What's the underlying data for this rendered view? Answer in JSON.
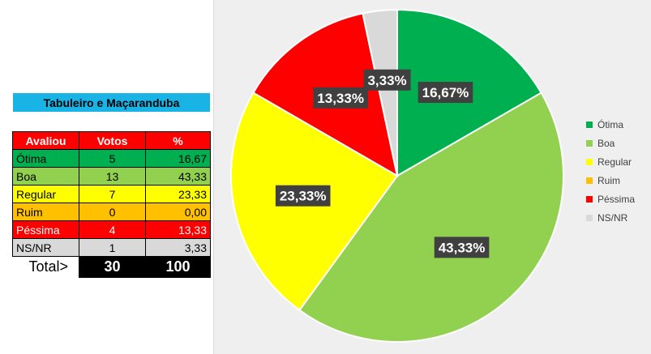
{
  "table": {
    "title": "Tabuleiro e Maçaranduba",
    "headers": [
      "Avaliou",
      "Votos",
      "%"
    ],
    "rows": [
      {
        "label": "Ótima",
        "votes": "5",
        "pct": "16,67",
        "color": "#00b050",
        "text_color": "#000000"
      },
      {
        "label": "Boa",
        "votes": "13",
        "pct": "43,33",
        "color": "#92d050",
        "text_color": "#000000"
      },
      {
        "label": "Regular",
        "votes": "7",
        "pct": "23,33",
        "color": "#ffff00",
        "text_color": "#000000"
      },
      {
        "label": "Ruim",
        "votes": "0",
        "pct": "0,00",
        "color": "#ffc000",
        "text_color": "#000000"
      },
      {
        "label": "Péssima",
        "votes": "4",
        "pct": "13,33",
        "color": "#ff0000",
        "text_color": "#ffffff"
      },
      {
        "label": "NS/NR",
        "votes": "1",
        "pct": "3,33",
        "color": "#d9d9d9",
        "text_color": "#000000"
      }
    ],
    "total_label": "Total>",
    "total_votes": "30",
    "total_pct": "100"
  },
  "chart_data": {
    "type": "pie",
    "categories": [
      "Ótima",
      "Boa",
      "Regular",
      "Ruim",
      "Péssima",
      "NS/NR"
    ],
    "values": [
      16.67,
      43.33,
      23.33,
      0.0,
      13.33,
      3.33
    ],
    "labels": [
      "16,67%",
      "43,33%",
      "23,33%",
      "",
      "13,33%",
      "3,33%"
    ],
    "colors": [
      "#00b050",
      "#92d050",
      "#ffff00",
      "#ffc000",
      "#ff0000",
      "#d9d9d9"
    ],
    "legend_position": "right"
  }
}
